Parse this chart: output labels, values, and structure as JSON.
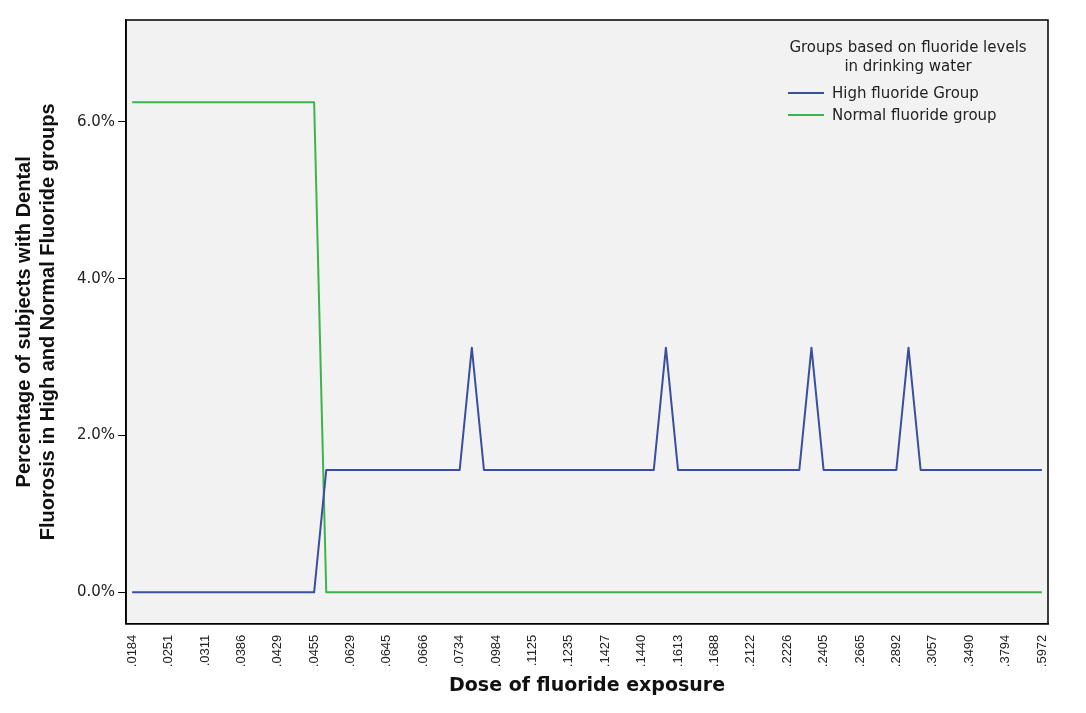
{
  "chart_data": {
    "type": "line",
    "xlabel": "Dose of fluoride exposure",
    "ylabel": "Percentage of subjects with Dental Fluorosis in High and Normal Fluoride groups",
    "legend_title": "Groups based on fluoride levels in drinking water",
    "categories": [
      ".0184",
      null,
      null,
      ".0251",
      null,
      null,
      ".0311",
      null,
      null,
      ".0386",
      null,
      null,
      ".0429",
      null,
      null,
      ".0455",
      null,
      null,
      ".0629",
      null,
      null,
      ".0645",
      null,
      null,
      ".0666",
      null,
      null,
      ".0734",
      null,
      null,
      ".0984",
      null,
      null,
      ".1125",
      null,
      null,
      ".1235",
      null,
      null,
      ".1427",
      null,
      null,
      ".1440",
      null,
      null,
      ".1613",
      null,
      null,
      ".1688",
      null,
      null,
      ".2122",
      null,
      null,
      ".2226",
      null,
      null,
      ".2405",
      null,
      null,
      ".2665",
      null,
      null,
      ".2892",
      null,
      null,
      ".3057",
      null,
      null,
      ".3490",
      null,
      null,
      ".3794",
      null,
      null,
      ".5972"
    ],
    "series": [
      {
        "name": "High fluoride Group",
        "color": "#3a4ea0",
        "values": [
          0,
          0,
          0,
          0,
          0,
          0,
          0,
          0,
          0,
          0,
          0,
          0,
          0,
          0,
          0,
          0,
          1.56,
          1.56,
          1.56,
          1.56,
          1.56,
          1.56,
          1.56,
          1.56,
          1.56,
          1.56,
          1.56,
          1.56,
          3.12,
          1.56,
          1.56,
          1.56,
          1.56,
          1.56,
          1.56,
          1.56,
          1.56,
          1.56,
          1.56,
          1.56,
          1.56,
          1.56,
          1.56,
          1.56,
          3.12,
          1.56,
          1.56,
          1.56,
          1.56,
          1.56,
          1.56,
          1.56,
          1.56,
          1.56,
          1.56,
          1.56,
          3.12,
          1.56,
          1.56,
          1.56,
          1.56,
          1.56,
          1.56,
          1.56,
          3.12,
          1.56,
          1.56,
          1.56,
          1.56,
          1.56,
          1.56,
          1.56,
          1.56,
          1.56,
          1.56,
          1.56
        ]
      },
      {
        "name": "Normal fluoride group",
        "color": "#3cb44b",
        "values": [
          6.25,
          6.25,
          6.25,
          6.25,
          6.25,
          6.25,
          6.25,
          6.25,
          6.25,
          6.25,
          6.25,
          6.25,
          6.25,
          6.25,
          6.25,
          6.25,
          0,
          0,
          0,
          0,
          0,
          0,
          0,
          0,
          0,
          0,
          0,
          0,
          0,
          0,
          0,
          0,
          0,
          0,
          0,
          0,
          0,
          0,
          0,
          0,
          0,
          0,
          0,
          0,
          0,
          0,
          0,
          0,
          0,
          0,
          0,
          0,
          0,
          0,
          0,
          0,
          0,
          0,
          0,
          0,
          0,
          0,
          0,
          0,
          0,
          0,
          0,
          0,
          0,
          0,
          0,
          0,
          0,
          0,
          0,
          0
        ]
      }
    ],
    "ylim": [
      -0.4,
      7.3
    ],
    "yticks": [
      {
        "value": 0,
        "label": "0.0%"
      },
      {
        "value": 2,
        "label": "2.0%"
      },
      {
        "value": 4,
        "label": "4.0%"
      },
      {
        "value": 6,
        "label": "6.0%"
      }
    ],
    "grid": false,
    "legend": "top right",
    "marker": "none",
    "line_style": "solid"
  }
}
